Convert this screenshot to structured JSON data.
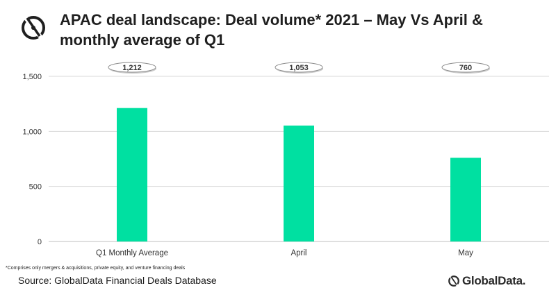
{
  "page": {
    "title": "APAC deal landscape: Deal volume* 2021 – May Vs April & monthly average of Q1",
    "footnote": "*Comprises only mergers & acquisitions, private equity, and venture financing deals",
    "source": "Source: GlobalData Financial Deals Database",
    "brand": "GlobalData."
  },
  "icons": {
    "logo": "globaldata-logo-icon",
    "brand_mark": "globaldata-mark-icon"
  },
  "colors": {
    "bar": "#00E0A1",
    "title": "#1f1f1f",
    "gridline": "#d9d9d9"
  },
  "chart_data": {
    "type": "bar",
    "categories": [
      "Q1 Monthly Average",
      "April",
      "May"
    ],
    "values": [
      1212,
      1053,
      760
    ],
    "data_labels": [
      "1,212",
      "1,053",
      "760"
    ],
    "ylim": [
      0,
      1500
    ],
    "yticks": [
      0,
      500,
      1000,
      1500
    ],
    "ytick_labels": [
      "0",
      "500",
      "1,000",
      "1,500"
    ],
    "grid": true,
    "xlabel": "",
    "ylabel": ""
  }
}
